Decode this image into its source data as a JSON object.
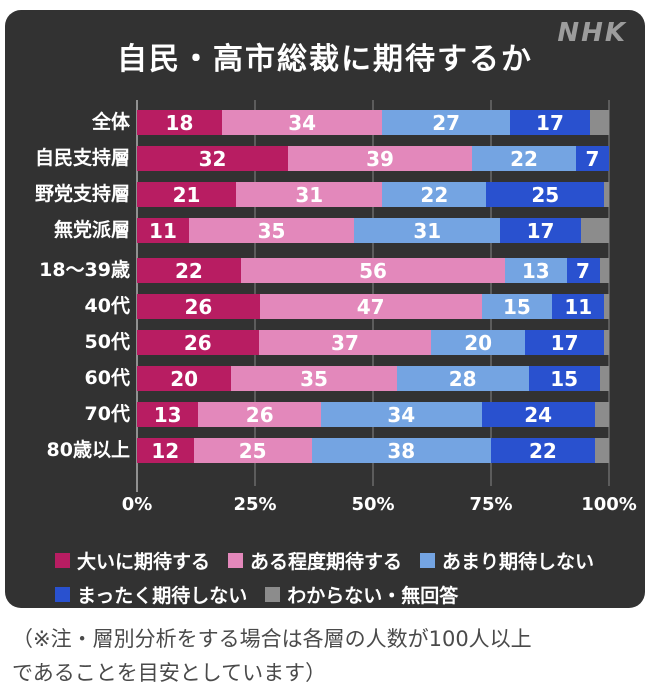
{
  "header": {
    "logo": "NHK",
    "title": "自民・高市総裁に期待するか"
  },
  "colors": {
    "panel_bg": "#323232",
    "page_bg": "#ffffff",
    "gridline": "#5c5c5c",
    "axis_line": "#919191",
    "text_light": "#ffffff",
    "logo_gray": "#9c9c9c",
    "footer_text": "#4a4a4a"
  },
  "chart_data": {
    "type": "bar",
    "stacked": true,
    "orientation": "horizontal",
    "title": "自民・高市総裁に期待するか",
    "xlabel": "",
    "ylabel": "",
    "xlim": [
      0,
      100
    ],
    "grid": true,
    "x_ticks": [
      "0%",
      "25%",
      "50%",
      "75%",
      "100%"
    ],
    "series": [
      {
        "name": "大いに期待する",
        "color": "#b81d62"
      },
      {
        "name": "ある程度期待する",
        "color": "#e388bb"
      },
      {
        "name": "あまり期待しない",
        "color": "#74a4e2"
      },
      {
        "name": "まったく期待しない",
        "color": "#2951cf"
      },
      {
        "name": "わからない・無回答",
        "color": "#8c8c8c"
      }
    ],
    "legend_lines": [
      [
        0,
        1,
        2
      ],
      [
        3,
        4
      ]
    ],
    "labeled_series_count": 4,
    "group_break_before_index": 4,
    "categories": [
      "全体",
      "自民支持層",
      "野党支持層",
      "無党派層",
      "18〜39歳",
      "40代",
      "50代",
      "60代",
      "70代",
      "80歳以上"
    ],
    "rows": [
      {
        "category": "全体",
        "values": [
          18,
          34,
          27,
          17,
          4
        ]
      },
      {
        "category": "自民支持層",
        "values": [
          32,
          39,
          22,
          7,
          0
        ]
      },
      {
        "category": "野党支持層",
        "values": [
          21,
          31,
          22,
          25,
          1
        ]
      },
      {
        "category": "無党派層",
        "values": [
          11,
          35,
          31,
          17,
          6
        ]
      },
      {
        "category": "18〜39歳",
        "values": [
          22,
          56,
          13,
          7,
          2
        ]
      },
      {
        "category": "40代",
        "values": [
          26,
          47,
          15,
          11,
          1
        ]
      },
      {
        "category": "50代",
        "values": [
          26,
          37,
          20,
          17,
          1
        ]
      },
      {
        "category": "60代",
        "values": [
          20,
          35,
          28,
          15,
          2
        ]
      },
      {
        "category": "70代",
        "values": [
          13,
          26,
          34,
          24,
          3
        ]
      },
      {
        "category": "80歳以上",
        "values": [
          12,
          25,
          38,
          22,
          3
        ]
      }
    ]
  },
  "footer": {
    "line1": "（※注・層別分析をする場合は各層の人数が100人以上",
    "line2": "であることを目安としています）"
  }
}
